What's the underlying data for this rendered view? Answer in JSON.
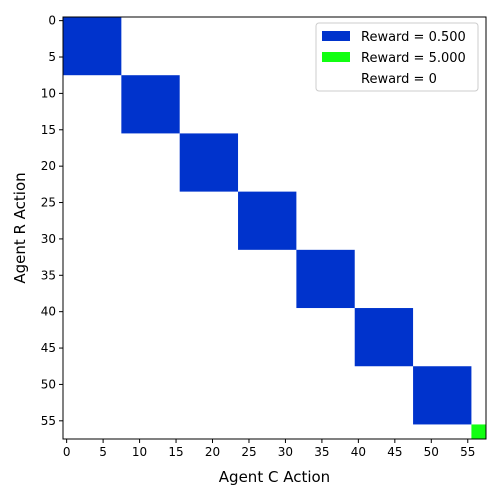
{
  "chart_data": {
    "type": "heatmap",
    "title": "",
    "xlabel": "Agent C Action",
    "ylabel": "Agent R Action",
    "xlim": [
      -0.5,
      57.5
    ],
    "ylim": [
      57.5,
      -0.5
    ],
    "x_ticks": [
      0,
      5,
      10,
      15,
      20,
      25,
      30,
      35,
      40,
      45,
      50,
      55
    ],
    "y_ticks": [
      0,
      5,
      10,
      15,
      20,
      25,
      30,
      35,
      40,
      45,
      50,
      55
    ],
    "grid": false,
    "legend_position": "top-right",
    "default_reward": 0,
    "series": [
      {
        "name": "Reward = 0.500",
        "value": 0.5,
        "color": "#0033cc",
        "cells": [
          {
            "x0": 0,
            "x1": 7,
            "y0": 0,
            "y1": 7
          },
          {
            "x0": 8,
            "x1": 15,
            "y0": 8,
            "y1": 15
          },
          {
            "x0": 16,
            "x1": 23,
            "y0": 16,
            "y1": 23
          },
          {
            "x0": 24,
            "x1": 31,
            "y0": 24,
            "y1": 31
          },
          {
            "x0": 32,
            "x1": 39,
            "y0": 32,
            "y1": 39
          },
          {
            "x0": 40,
            "x1": 47,
            "y0": 40,
            "y1": 47
          },
          {
            "x0": 48,
            "x1": 55,
            "y0": 48,
            "y1": 55
          }
        ]
      },
      {
        "name": "Reward = 5.000",
        "value": 5.0,
        "color": "#11ff11",
        "cells": [
          {
            "x0": 56,
            "x1": 57,
            "y0": 56,
            "y1": 57
          }
        ]
      },
      {
        "name": "Reward = 0",
        "value": 0,
        "color": "#ffffff",
        "cells": []
      }
    ]
  }
}
